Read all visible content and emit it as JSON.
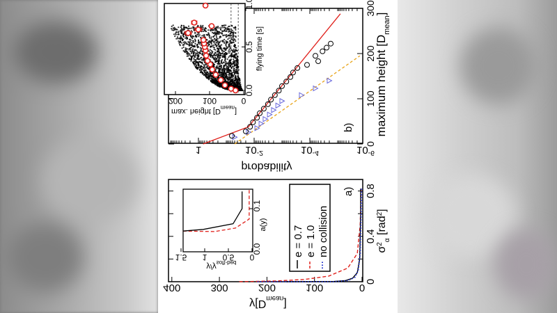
{
  "colors": {
    "black_series": "#000000",
    "red_series": "#e0201b",
    "blue_series": "#2233cc",
    "yellow_fit": "#e8a317",
    "triangle": "#6a6adc",
    "dark_red_line": "#8b1030"
  },
  "chart_data": [
    {
      "panel": "a)",
      "type": "line",
      "xlabel": "y[D",
      "xlabel_sub": "mean",
      "xlabel_end": "]",
      "ylabel": "σ",
      "ylabel_sup": "2",
      "ylabel_sub": "α",
      "ylabel_end": " [rad",
      "ylabel_end_sup": "2",
      "ylabel_close": "]",
      "xlim": [
        0,
        400
      ],
      "ylim": [
        0,
        0.9
      ],
      "xticks": [
        "400",
        "300",
        "200",
        "100",
        "0"
      ],
      "yticks": [
        "0",
        "0.4",
        "0.8"
      ],
      "legend_placement": "inside",
      "series": [
        {
          "name": "e = 0.7",
          "style": "solid",
          "points": [
            [
              3,
              0.82
            ],
            [
              3,
              0.6
            ],
            [
              5,
              0.2
            ],
            [
              10,
              0.08
            ],
            [
              20,
              0.03
            ],
            [
              35,
              0.01
            ],
            [
              60,
              0.002
            ],
            [
              160,
              0
            ]
          ]
        },
        {
          "name": "e = 1.0",
          "style": "dashed",
          "points": [
            [
              2,
              0.82
            ],
            [
              4,
              0.5
            ],
            [
              10,
              0.25
            ],
            [
              30,
              0.12
            ],
            [
              70,
              0.05
            ],
            [
              120,
              0.02
            ],
            [
              180,
              0.007
            ],
            [
              260,
              0
            ]
          ]
        },
        {
          "name": "no collision",
          "style": "dotted",
          "points": [
            [
              1,
              0.82
            ],
            [
              2,
              0.6
            ],
            [
              4,
              0.25
            ],
            [
              8,
              0.1
            ],
            [
              15,
              0.04
            ],
            [
              30,
              0.01
            ],
            [
              60,
              0
            ],
            [
              220,
              0
            ]
          ]
        }
      ],
      "inset": {
        "type": "line",
        "xlabel": "y/y",
        "xlabel_sub": "soft-bed",
        "ylabel": "a(y)",
        "xticks": [
          "1.5",
          "1",
          "0.5",
          "0"
        ],
        "yticks": [
          "0.0",
          "0.1"
        ],
        "series": [
          {
            "style": "solid",
            "points": [
              [
                0.21,
                0.14
              ],
              [
                0.21,
                0.1
              ],
              [
                0.4,
                0.065
              ],
              [
                1.03,
                0.052
              ],
              [
                1.46,
                0.048
              ]
            ]
          },
          {
            "style": "dashed",
            "points": [
              [
                0.06,
                0.143
              ],
              [
                0.06,
                0.076
              ],
              [
                0.35,
                0.055
              ],
              [
                0.79,
                0.047
              ],
              [
                1.46,
                0.048
              ]
            ]
          }
        ]
      }
    },
    {
      "panel": "b)",
      "type": "scatter",
      "xlabel": "maximum height [D",
      "xlabel_sub": "mean",
      "xlabel_end": "]",
      "ylabel": "probability",
      "xlim": [
        0,
        300
      ],
      "ylog": true,
      "ylim": [
        1e-06,
        10
      ],
      "xticks": [
        "0",
        "100",
        "200",
        "300"
      ],
      "yticks": [
        {
          "base": "1",
          "exp": ""
        },
        {
          "base": "10",
          "exp": "-2"
        },
        {
          "base": "10",
          "exp": "-4"
        },
        {
          "base": "10",
          "exp": "-6"
        }
      ],
      "fit_solid": [
        [
          0,
          0.68
        ],
        [
          38,
          0.016
        ],
        [
          288,
          8e-06
        ]
      ],
      "fit_dashed": [
        [
          0,
          0.05
        ],
        [
          195,
          1.6e-06
        ]
      ],
      "circles": [
        [
          18,
          0.063
        ],
        [
          28,
          0.02
        ],
        [
          38,
          0.014
        ],
        [
          48,
          0.011
        ],
        [
          58,
          0.0079
        ],
        [
          68,
          0.0063
        ],
        [
          78,
          0.0045
        ],
        [
          88,
          0.0032
        ],
        [
          98,
          0.0025
        ],
        [
          108,
          0.0018
        ],
        [
          118,
          0.0013
        ],
        [
          128,
          0.001
        ],
        [
          138,
          0.0007
        ],
        [
          148,
          0.0005
        ],
        [
          158,
          0.0004
        ],
        [
          168,
          0.00028
        ],
        [
          175,
          0.000126
        ],
        [
          195,
          6.3e-05
        ],
        [
          183,
          5e-05
        ],
        [
          205,
          3.5e-05
        ],
        [
          213,
          2.5e-05
        ],
        [
          222,
          1.78e-05
        ]
      ],
      "triangles": [
        [
          15,
          0.05
        ],
        [
          26,
          0.016
        ],
        [
          35,
          0.0079
        ],
        [
          45,
          0.0056
        ],
        [
          55,
          0.004
        ],
        [
          65,
          0.0028
        ],
        [
          75,
          0.002
        ],
        [
          85,
          0.0014
        ],
        [
          95,
          0.001
        ],
        [
          108,
          0.0002
        ],
        [
          123,
          6.3e-05
        ],
        [
          140,
          2e-05
        ]
      ],
      "inset": {
        "type": "scatter",
        "xlabel": "flying time [s]",
        "ylabel": "max. height [D",
        "ylabel_sub": "mean",
        "ylabel_end": "]",
        "xlim": [
          0,
          1.0
        ],
        "ylim": [
          0,
          235
        ],
        "xticks": [
          "0.0",
          "0.5",
          "1.0"
        ],
        "yticks": [
          "0",
          "100",
          "200"
        ],
        "reference_lines_height": [
          16,
          37
        ],
        "mean_points": [
          [
            0.0,
            24
          ],
          [
            0.02,
            37
          ],
          [
            0.06,
            55
          ],
          [
            0.12,
            67
          ],
          [
            0.18,
            82
          ],
          [
            0.24,
            92
          ],
          [
            0.3,
            98
          ],
          [
            0.34,
            106
          ],
          [
            0.4,
            110
          ],
          [
            0.46,
            112
          ],
          [
            0.5,
            114
          ],
          [
            0.54,
            116
          ],
          [
            0.58,
            118
          ],
          [
            0.7,
            133
          ],
          [
            0.74,
            94
          ],
          [
            0.78,
            145
          ],
          [
            0.66,
            163
          ],
          [
            1.0,
            112
          ]
        ],
        "error_bars": [
          [
            0.66,
            163,
            10
          ],
          [
            0.7,
            133,
            10
          ],
          [
            0.78,
            145,
            8
          ]
        ]
      }
    }
  ]
}
